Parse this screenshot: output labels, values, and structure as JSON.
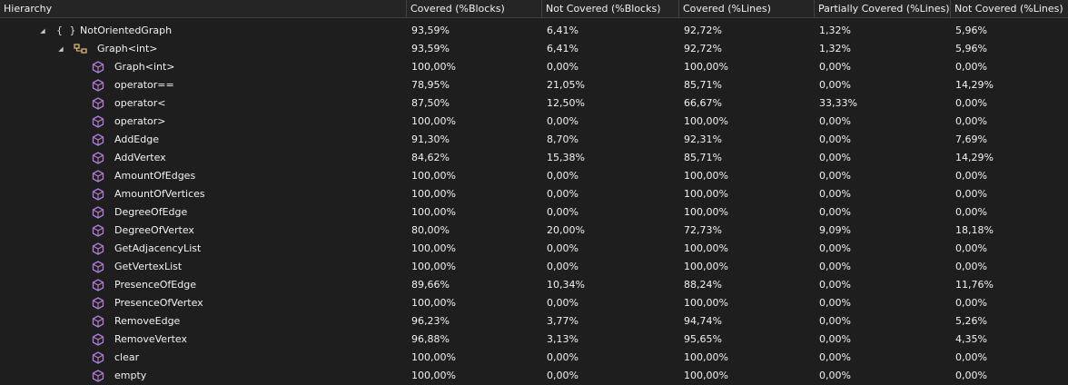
{
  "columns": [
    "Hierarchy",
    "Covered (%Blocks)",
    "Not Covered (%Blocks)",
    "Covered (%Lines)",
    "Partially Covered (%Lines)",
    "Not Covered (%Lines)"
  ],
  "tree": {
    "namespace": {
      "icon": "namespace-braces-icon",
      "label": "NotOrientedGraph",
      "values": [
        "93,59%",
        "6,41%",
        "92,72%",
        "1,32%",
        "5,96%"
      ]
    },
    "class": {
      "icon": "class-icon",
      "label": "Graph<int>",
      "values": [
        "93,59%",
        "6,41%",
        "92,72%",
        "1,32%",
        "5,96%"
      ]
    },
    "methods": [
      {
        "label": "Graph<int>",
        "values": [
          "100,00%",
          "0,00%",
          "100,00%",
          "0,00%",
          "0,00%"
        ]
      },
      {
        "label": "operator==",
        "values": [
          "78,95%",
          "21,05%",
          "85,71%",
          "0,00%",
          "14,29%"
        ]
      },
      {
        "label": "operator<",
        "values": [
          "87,50%",
          "12,50%",
          "66,67%",
          "33,33%",
          "0,00%"
        ]
      },
      {
        "label": "operator>",
        "values": [
          "100,00%",
          "0,00%",
          "100,00%",
          "0,00%",
          "0,00%"
        ]
      },
      {
        "label": "AddEdge",
        "values": [
          "91,30%",
          "8,70%",
          "92,31%",
          "0,00%",
          "7,69%"
        ]
      },
      {
        "label": "AddVertex",
        "values": [
          "84,62%",
          "15,38%",
          "85,71%",
          "0,00%",
          "14,29%"
        ]
      },
      {
        "label": "AmountOfEdges",
        "values": [
          "100,00%",
          "0,00%",
          "100,00%",
          "0,00%",
          "0,00%"
        ]
      },
      {
        "label": "AmountOfVertices",
        "values": [
          "100,00%",
          "0,00%",
          "100,00%",
          "0,00%",
          "0,00%"
        ]
      },
      {
        "label": "DegreeOfEdge",
        "values": [
          "100,00%",
          "0,00%",
          "100,00%",
          "0,00%",
          "0,00%"
        ]
      },
      {
        "label": "DegreeOfVertex",
        "values": [
          "80,00%",
          "20,00%",
          "72,73%",
          "9,09%",
          "18,18%"
        ]
      },
      {
        "label": "GetAdjacencyList",
        "values": [
          "100,00%",
          "0,00%",
          "100,00%",
          "0,00%",
          "0,00%"
        ]
      },
      {
        "label": "GetVertexList",
        "values": [
          "100,00%",
          "0,00%",
          "100,00%",
          "0,00%",
          "0,00%"
        ]
      },
      {
        "label": "PresenceOfEdge",
        "values": [
          "89,66%",
          "10,34%",
          "88,24%",
          "0,00%",
          "11,76%"
        ]
      },
      {
        "label": "PresenceOfVertex",
        "values": [
          "100,00%",
          "0,00%",
          "100,00%",
          "0,00%",
          "0,00%"
        ]
      },
      {
        "label": "RemoveEdge",
        "values": [
          "96,23%",
          "3,77%",
          "94,74%",
          "0,00%",
          "5,26%"
        ]
      },
      {
        "label": "RemoveVertex",
        "values": [
          "96,88%",
          "3,13%",
          "95,65%",
          "0,00%",
          "4,35%"
        ]
      },
      {
        "label": "clear",
        "values": [
          "100,00%",
          "0,00%",
          "100,00%",
          "0,00%",
          "0,00%"
        ]
      },
      {
        "label": "empty",
        "values": [
          "100,00%",
          "0,00%",
          "100,00%",
          "0,00%",
          "0,00%"
        ]
      }
    ]
  },
  "colors": {
    "background": "#1e1e1e",
    "header_bg": "#252526",
    "method_icon": "#b180d7",
    "class_icon": "#e8c07a",
    "text": "#f1f1f1"
  }
}
